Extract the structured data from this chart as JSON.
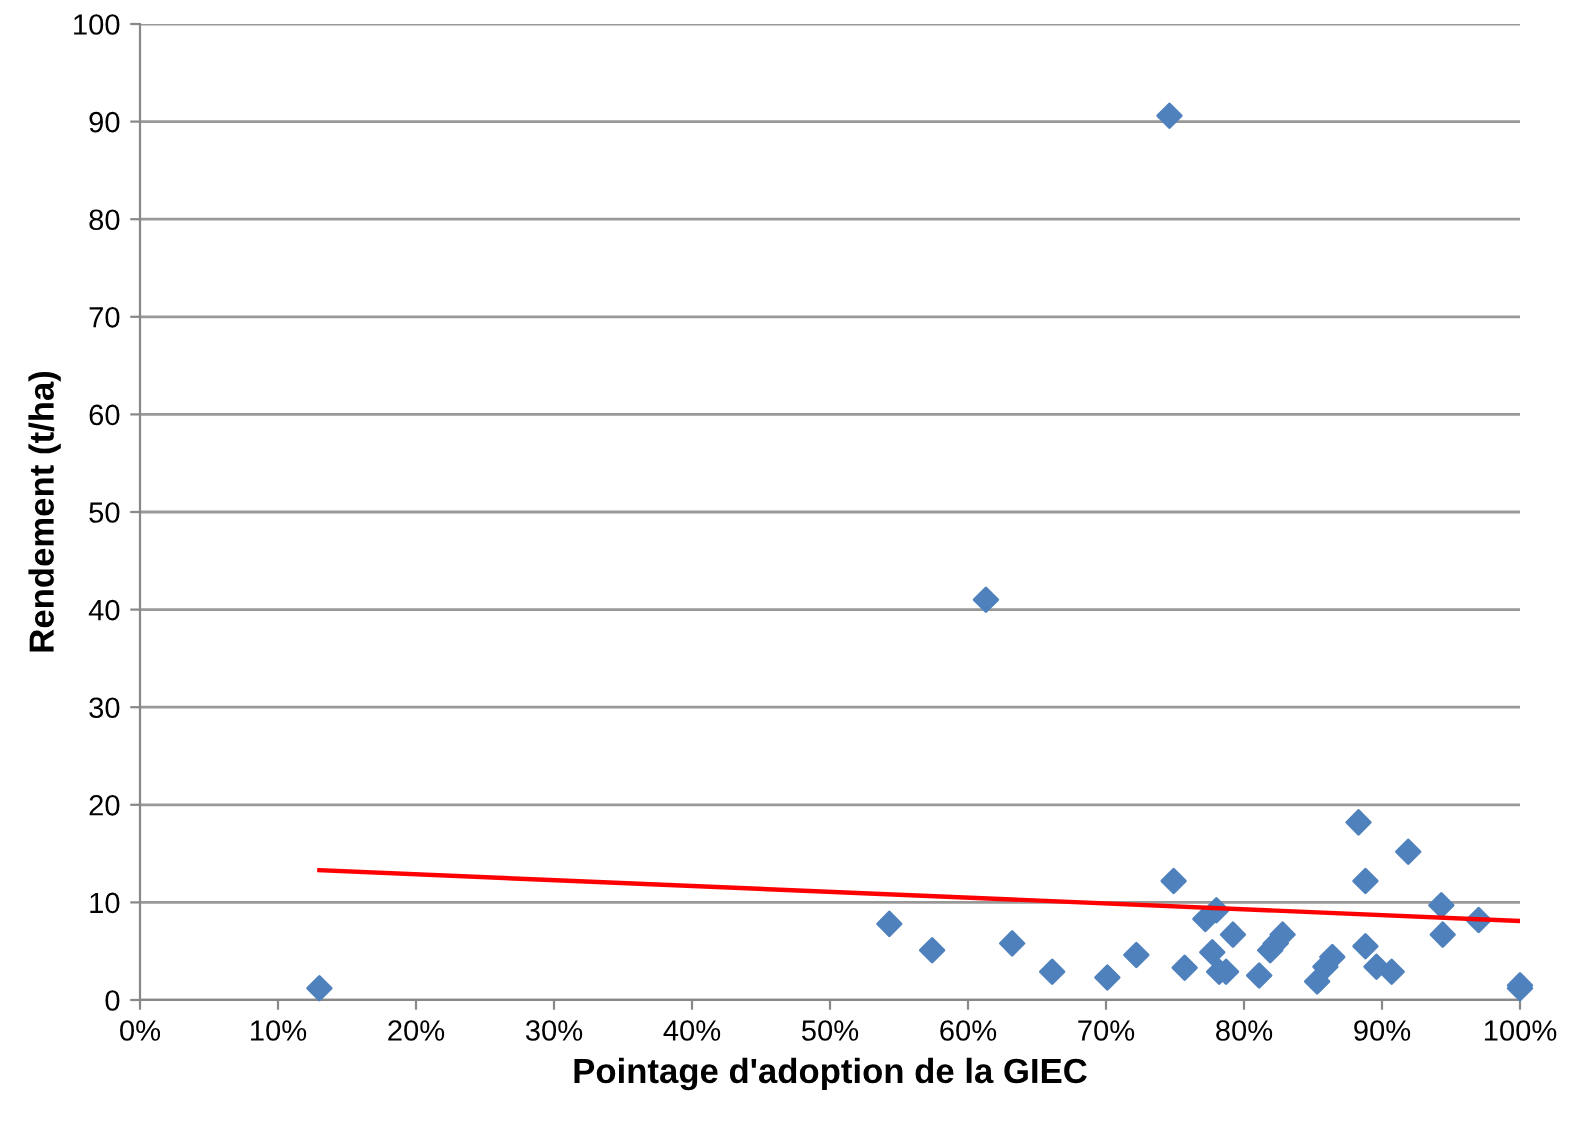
{
  "chart_data": {
    "type": "scatter",
    "xlabel": "Pointage d'adoption de la GIEC",
    "ylabel": "Rendement (t/ha)",
    "xlim": [
      0,
      1
    ],
    "xticks": [
      {
        "value": 0,
        "label": "0%"
      },
      {
        "value": 0.1,
        "label": "10%"
      },
      {
        "value": 0.2,
        "label": "20%"
      },
      {
        "value": 0.3,
        "label": "30%"
      },
      {
        "value": 0.4,
        "label": "40%"
      },
      {
        "value": 0.5,
        "label": "50%"
      },
      {
        "value": 0.6,
        "label": "60%"
      },
      {
        "value": 0.7,
        "label": "70%"
      },
      {
        "value": 0.8,
        "label": "80%"
      },
      {
        "value": 0.9,
        "label": "90%"
      },
      {
        "value": 1,
        "label": "100%"
      }
    ],
    "ylim": [
      0,
      100
    ],
    "yticks": [
      0,
      10,
      20,
      30,
      40,
      50,
      60,
      70,
      80,
      90,
      100
    ],
    "grid": "y",
    "marker": "diamond",
    "legend": false,
    "series": [
      {
        "color": "#4f81bd",
        "x": [
          0.13,
          0.543,
          0.574,
          0.613,
          0.632,
          0.661,
          0.701,
          0.722,
          0.746,
          0.749,
          0.757,
          0.772,
          0.777,
          0.78,
          0.782,
          0.787,
          0.792,
          0.811,
          0.819,
          0.823,
          0.828,
          0.853,
          0.859,
          0.864,
          0.883,
          0.888,
          0.888,
          0.896,
          0.907,
          0.919,
          0.943,
          0.944,
          0.97,
          1.0,
          1.0
        ],
        "values": [
          1.2,
          7.8,
          5.1,
          41,
          5.8,
          2.9,
          2.3,
          4.6,
          90.6,
          12.2,
          3.3,
          8.3,
          4.9,
          9.2,
          2.9,
          2.9,
          6.7,
          2.5,
          5.1,
          5.8,
          6.7,
          1.9,
          3.4,
          4.4,
          18.2,
          12.2,
          5.5,
          3.4,
          2.9,
          15.2,
          9.7,
          6.7,
          8.2,
          1.5,
          1.2
        ]
      },
      {
        "type": "line",
        "color": "#ff0000",
        "marker": "none",
        "x": [
          0.13,
          1.0
        ],
        "values": [
          13.3,
          8.1
        ]
      }
    ]
  }
}
